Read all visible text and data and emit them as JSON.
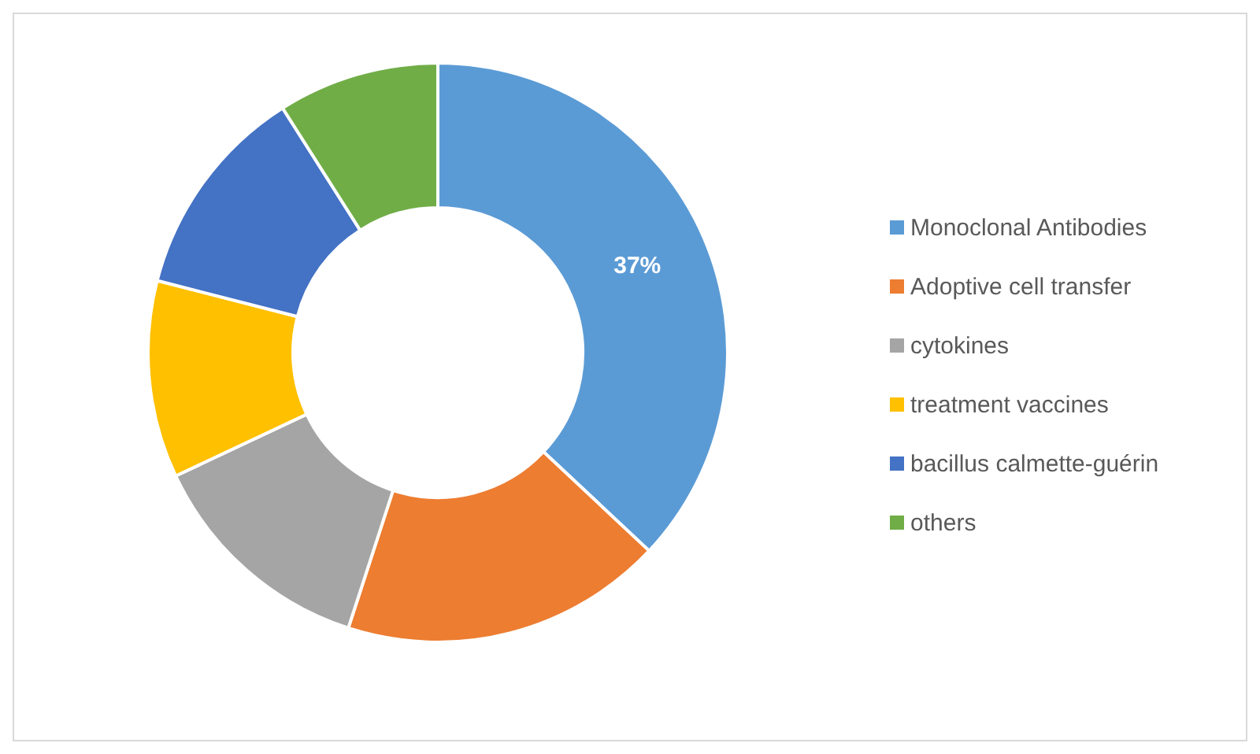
{
  "chart_data": {
    "type": "donut",
    "categories": [
      "Monoclonal Antibodies",
      "Adoptive cell transfer",
      "cytokines",
      "treatment vaccines",
      "bacillus calmette-guérin",
      "others"
    ],
    "values": [
      37,
      18,
      13,
      11,
      12,
      9
    ],
    "colors": [
      "#5b9bd5",
      "#ed7d31",
      "#a5a5a5",
      "#ffc000",
      "#4472c4",
      "#70ad47"
    ],
    "value_labels": [
      "37%",
      null,
      null,
      null,
      null,
      null
    ],
    "legend": "right"
  }
}
